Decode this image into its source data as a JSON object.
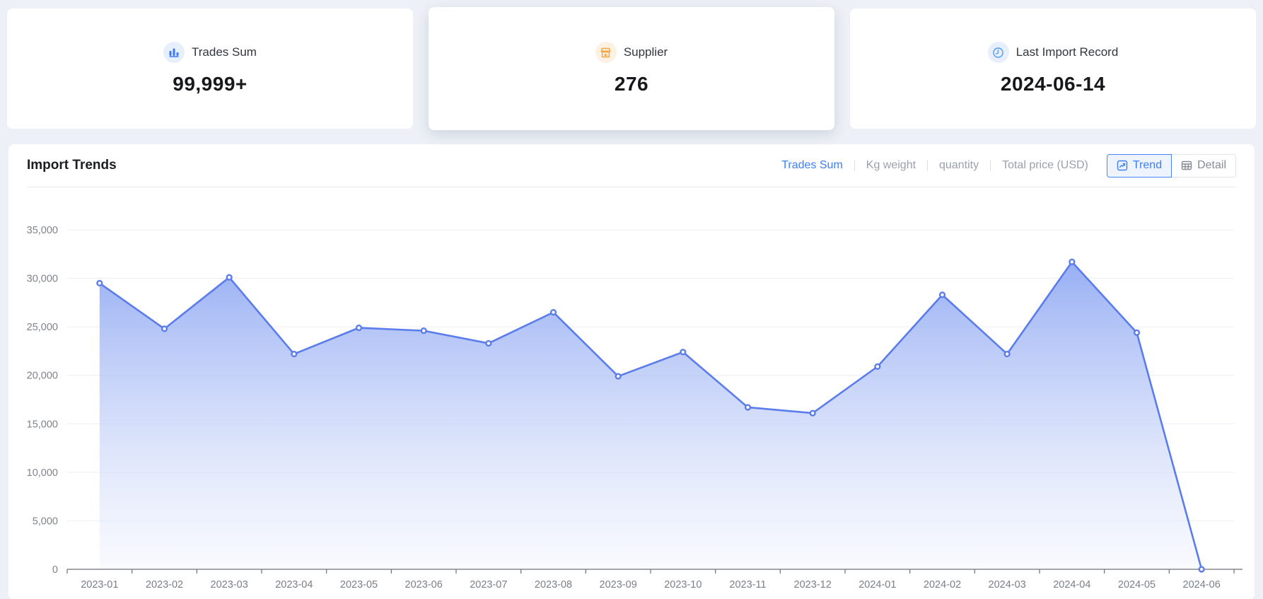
{
  "cards": [
    {
      "label": "Trades Sum",
      "value": "99,999+",
      "icon": "bar-chart-icon",
      "icon_color": "#3B79F6",
      "icon_bg": "#E7EFFD"
    },
    {
      "label": "Supplier",
      "value": "276",
      "icon": "shop-icon",
      "icon_color": "#F0A643",
      "icon_bg": "#FCF1E2"
    },
    {
      "label": "Last Import Record",
      "value": "2024-06-14",
      "icon": "clock-icon",
      "icon_color": "#4D9AF5",
      "icon_bg": "#E7F0FD"
    }
  ],
  "trends": {
    "title": "Import Trends",
    "metric_tabs": [
      {
        "label": "Trades Sum",
        "active": true
      },
      {
        "label": "Kg weight",
        "active": false
      },
      {
        "label": "quantity",
        "active": false
      },
      {
        "label": "Total price (USD)",
        "active": false
      }
    ],
    "view_toggle": [
      {
        "label": "Trend",
        "active": true,
        "icon": "trend-icon"
      },
      {
        "label": "Detail",
        "active": false,
        "icon": "table-icon"
      }
    ]
  },
  "chart_data": {
    "type": "area",
    "title": "Import Trends - Trades Sum",
    "x": [
      "2023-01",
      "2023-02",
      "2023-03",
      "2023-04",
      "2023-05",
      "2023-06",
      "2023-07",
      "2023-08",
      "2023-09",
      "2023-10",
      "2023-11",
      "2023-12",
      "2024-01",
      "2024-02",
      "2024-03",
      "2024-04",
      "2024-05",
      "2024-06"
    ],
    "series": [
      {
        "name": "Trades Sum",
        "values": [
          29500,
          24800,
          30100,
          22200,
          24900,
          24600,
          23300,
          26500,
          19900,
          22400,
          16700,
          16100,
          20900,
          28300,
          22200,
          31700,
          24400,
          0
        ]
      }
    ],
    "xlabel": "",
    "ylabel": "",
    "ylim": [
      0,
      35000
    ],
    "ytick_interval": 5000,
    "grid": true,
    "legend_position": "none",
    "line_color": "#5B7CEB",
    "marker": "hollow-circle",
    "area_gradient_top": "#7E9BF1",
    "area_gradient_bottom": "#F1F4FD",
    "axis_line_color": "#6E7079",
    "axis_label_color": "#7A7F88",
    "gridline_color": "#ECEEF3"
  },
  "colors": {
    "accent_blue": "#3D7EF7",
    "page_background": "#EDF0F6",
    "panel_background": "#FFFFFF",
    "inactive_text": "#9AA1AC"
  }
}
